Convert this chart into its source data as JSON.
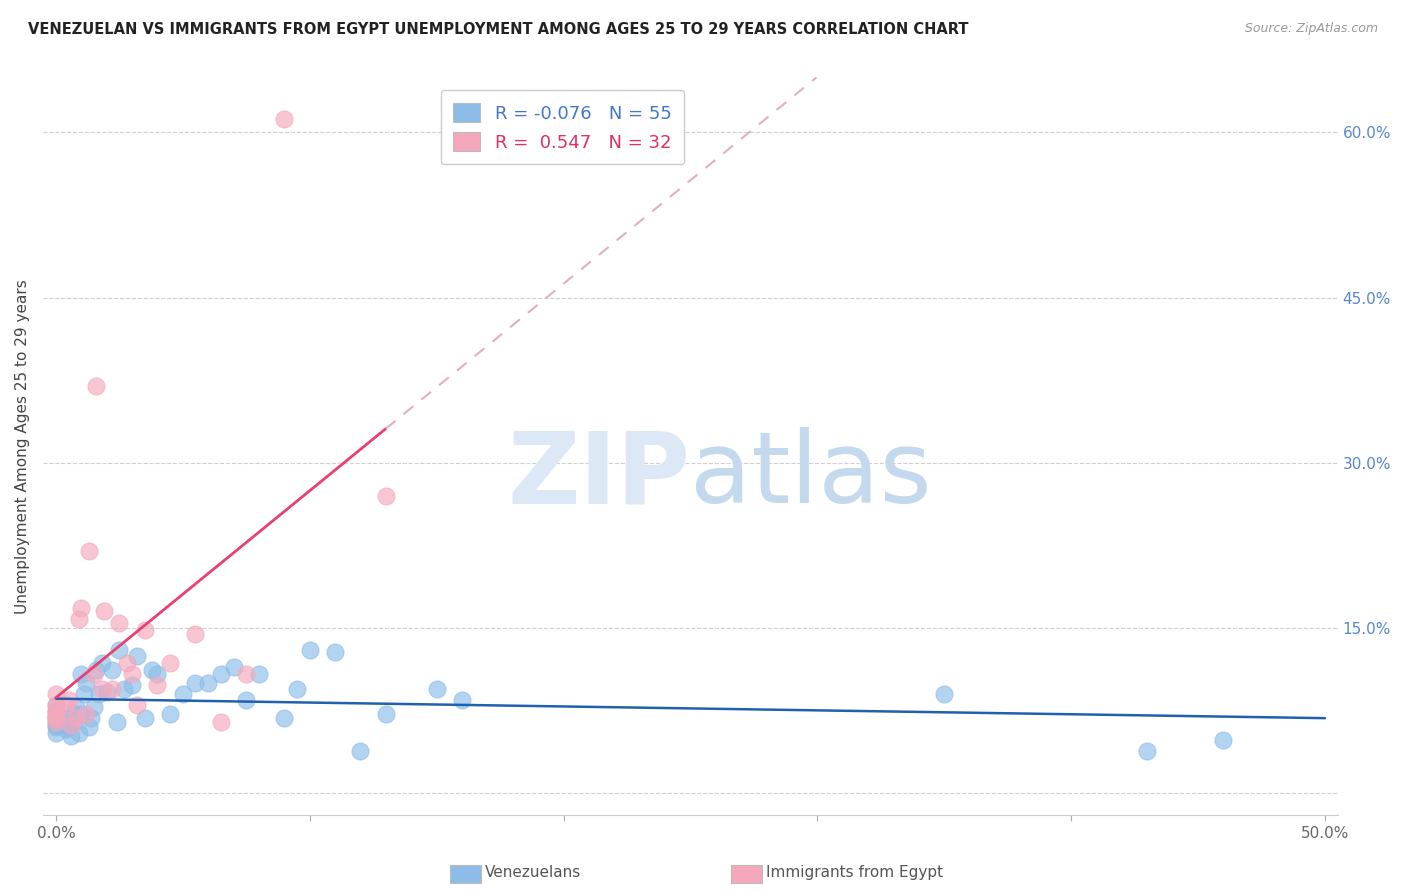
{
  "title": "VENEZUELAN VS IMMIGRANTS FROM EGYPT UNEMPLOYMENT AMONG AGES 25 TO 29 YEARS CORRELATION CHART",
  "source": "Source: ZipAtlas.com",
  "ylabel": "Unemployment Among Ages 25 to 29 years",
  "xlim": [
    0.0,
    0.5
  ],
  "ylim": [
    -0.02,
    0.65
  ],
  "xticks": [
    0.0,
    0.1,
    0.2,
    0.3,
    0.4,
    0.5
  ],
  "yticks": [
    0.0,
    0.15,
    0.3,
    0.45,
    0.6
  ],
  "xticklabels": [
    "0.0%",
    "",
    "",
    "",
    "",
    "50.0%"
  ],
  "yticklabels_right": [
    "",
    "15.0%",
    "30.0%",
    "45.0%",
    "60.0%"
  ],
  "background_color": "#ffffff",
  "grid_color": "#d0d0d0",
  "venezuelan_color": "#8bbde8",
  "egypt_color": "#f5a8bc",
  "venezuelan_line_color": "#2060b0",
  "egypt_line_color": "#e84070",
  "egypt_dash_color": "#e0b0c0",
  "venezuelan_R": -0.076,
  "venezuelan_N": 55,
  "egypt_R": 0.547,
  "egypt_N": 32,
  "venezuelan_x": [
    0.0,
    0.0,
    0.0,
    0.0,
    0.0,
    0.0,
    0.0,
    0.0,
    0.004,
    0.004,
    0.005,
    0.006,
    0.007,
    0.007,
    0.008,
    0.009,
    0.01,
    0.01,
    0.011,
    0.012,
    0.013,
    0.014,
    0.015,
    0.016,
    0.017,
    0.018,
    0.02,
    0.022,
    0.024,
    0.025,
    0.027,
    0.03,
    0.032,
    0.035,
    0.038,
    0.04,
    0.045,
    0.05,
    0.055,
    0.06,
    0.065,
    0.07,
    0.075,
    0.08,
    0.09,
    0.095,
    0.1,
    0.11,
    0.12,
    0.13,
    0.15,
    0.16,
    0.35,
    0.43,
    0.46
  ],
  "venezuelan_y": [
    0.07,
    0.065,
    0.08,
    0.06,
    0.075,
    0.055,
    0.062,
    0.068,
    0.068,
    0.058,
    0.06,
    0.052,
    0.065,
    0.072,
    0.078,
    0.055,
    0.072,
    0.108,
    0.09,
    0.1,
    0.06,
    0.068,
    0.078,
    0.112,
    0.09,
    0.118,
    0.092,
    0.112,
    0.065,
    0.13,
    0.095,
    0.098,
    0.125,
    0.068,
    0.112,
    0.108,
    0.072,
    0.09,
    0.1,
    0.1,
    0.108,
    0.115,
    0.085,
    0.108,
    0.068,
    0.095,
    0.13,
    0.128,
    0.038,
    0.072,
    0.095,
    0.085,
    0.09,
    0.038,
    0.048
  ],
  "egypt_x": [
    0.0,
    0.0,
    0.0,
    0.0,
    0.0,
    0.0,
    0.0,
    0.004,
    0.005,
    0.006,
    0.008,
    0.009,
    0.01,
    0.012,
    0.013,
    0.015,
    0.016,
    0.018,
    0.019,
    0.022,
    0.025,
    0.028,
    0.03,
    0.032,
    0.035,
    0.04,
    0.045,
    0.055,
    0.065,
    0.075,
    0.09,
    0.13
  ],
  "egypt_y": [
    0.07,
    0.068,
    0.075,
    0.065,
    0.09,
    0.072,
    0.08,
    0.08,
    0.085,
    0.062,
    0.068,
    0.158,
    0.168,
    0.072,
    0.22,
    0.108,
    0.37,
    0.095,
    0.165,
    0.095,
    0.155,
    0.118,
    0.108,
    0.08,
    0.148,
    0.098,
    0.118,
    0.145,
    0.065,
    0.108,
    0.612,
    0.27
  ]
}
